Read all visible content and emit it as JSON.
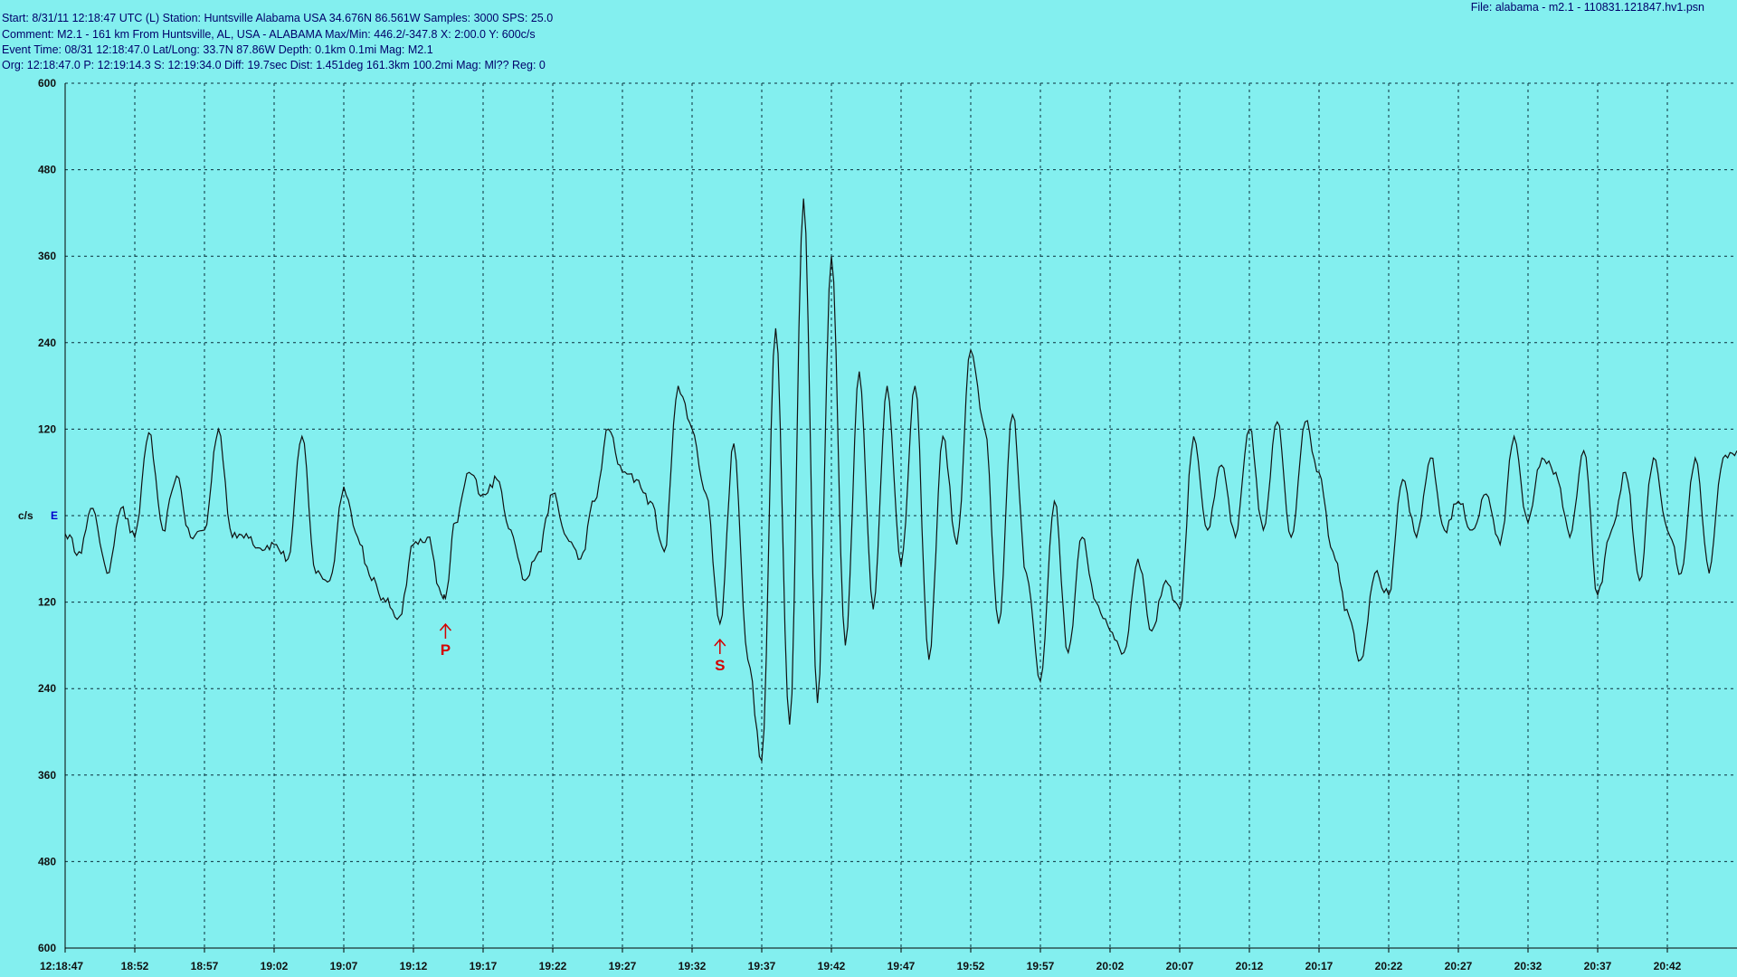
{
  "header": {
    "line1": "Start: 8/31/11 12:18:47 UTC (L) Station: Huntsville Alabama USA 34.676N 86.561W Samples: 3000  SPS: 25.0",
    "line2": "Comment: M2.1 - 161 km From Huntsville, AL, USA - ALABAMA  Max/Min: 446.2/-347.8 X: 2:00.0 Y: 600c/s",
    "line3": "Event Time: 08/31 12:18:47.0 Lat/Long: 33.7N 87.86W Depth: 0.1km 0.1mi Mag: M2.1",
    "line4": "Org: 12:18:47.0 P: 12:19:14.3 S: 12:19:34.0 Diff: 19.7sec Dist: 1.451deg 161.3km 100.2mi  Mag: Ml?? Reg: 0",
    "file": "File: alabama - m2.1 - 110831.121847.hv1.psn"
  },
  "chart_data": {
    "type": "line",
    "title": "",
    "xlabel": "",
    "ylabel": "c/s",
    "channel_label": "E",
    "xlim": [
      0,
      120
    ],
    "ylim": [
      -600,
      600
    ],
    "grid": true,
    "y_ticks": [
      {
        "value": 600,
        "label": "600"
      },
      {
        "value": 480,
        "label": "480"
      },
      {
        "value": 360,
        "label": "360"
      },
      {
        "value": 240,
        "label": "240"
      },
      {
        "value": 120,
        "label": "120"
      },
      {
        "value": -120,
        "label": "120"
      },
      {
        "value": -240,
        "label": "240"
      },
      {
        "value": -360,
        "label": "360"
      },
      {
        "value": -480,
        "label": "480"
      },
      {
        "value": -600,
        "label": "600"
      }
    ],
    "x_ticks": [
      {
        "t": 0,
        "label": "12:18:47"
      },
      {
        "t": 5,
        "label": "18:52"
      },
      {
        "t": 10,
        "label": "18:57"
      },
      {
        "t": 15,
        "label": "19:02"
      },
      {
        "t": 20,
        "label": "19:07"
      },
      {
        "t": 25,
        "label": "19:12"
      },
      {
        "t": 30,
        "label": "19:17"
      },
      {
        "t": 35,
        "label": "19:22"
      },
      {
        "t": 40,
        "label": "19:27"
      },
      {
        "t": 45,
        "label": "19:32"
      },
      {
        "t": 50,
        "label": "19:37"
      },
      {
        "t": 55,
        "label": "19:42"
      },
      {
        "t": 60,
        "label": "19:47"
      },
      {
        "t": 65,
        "label": "19:52"
      },
      {
        "t": 70,
        "label": "19:57"
      },
      {
        "t": 75,
        "label": "20:02"
      },
      {
        "t": 80,
        "label": "20:07"
      },
      {
        "t": 85,
        "label": "20:12"
      },
      {
        "t": 90,
        "label": "20:17"
      },
      {
        "t": 95,
        "label": "20:22"
      },
      {
        "t": 100,
        "label": "20:27"
      },
      {
        "t": 105,
        "label": "20:32"
      },
      {
        "t": 110,
        "label": "20:37"
      },
      {
        "t": 115,
        "label": "20:42"
      }
    ],
    "markers": [
      {
        "label": "P",
        "t": 27.3
      },
      {
        "label": "S",
        "t": 47.0
      }
    ],
    "series": [
      {
        "points": [
          [
            0,
            -25
          ],
          [
            1,
            -50
          ],
          [
            2,
            10
          ],
          [
            3,
            -80
          ],
          [
            4,
            10
          ],
          [
            5,
            -30
          ],
          [
            6,
            115
          ],
          [
            7,
            -20
          ],
          [
            8,
            55
          ],
          [
            9,
            -30
          ],
          [
            10,
            -20
          ],
          [
            11,
            120
          ],
          [
            12,
            -30
          ],
          [
            13,
            -25
          ],
          [
            14,
            -45
          ],
          [
            15,
            -40
          ],
          [
            16,
            -60
          ],
          [
            17,
            110
          ],
          [
            18,
            -80
          ],
          [
            19,
            -90
          ],
          [
            20,
            40
          ],
          [
            21,
            -30
          ],
          [
            22,
            -90
          ],
          [
            23,
            -120
          ],
          [
            24,
            -140
          ],
          [
            25,
            -40
          ],
          [
            26,
            -30
          ],
          [
            27,
            -110
          ],
          [
            27.3,
            -115
          ],
          [
            28,
            -10
          ],
          [
            29,
            60
          ],
          [
            30,
            30
          ],
          [
            31,
            50
          ],
          [
            32,
            -20
          ],
          [
            33,
            -90
          ],
          [
            34,
            -50
          ],
          [
            35,
            30
          ],
          [
            36,
            -30
          ],
          [
            37,
            -60
          ],
          [
            38,
            20
          ],
          [
            39,
            120
          ],
          [
            40,
            60
          ],
          [
            41,
            50
          ],
          [
            42,
            20
          ],
          [
            43,
            -50
          ],
          [
            44,
            180
          ],
          [
            45,
            120
          ],
          [
            46,
            30
          ],
          [
            47,
            -150
          ],
          [
            48,
            100
          ],
          [
            49,
            -200
          ],
          [
            50,
            -340
          ],
          [
            51,
            260
          ],
          [
            52,
            -290
          ],
          [
            53,
            440
          ],
          [
            54,
            -260
          ],
          [
            55,
            360
          ],
          [
            56,
            -180
          ],
          [
            57,
            200
          ],
          [
            58,
            -130
          ],
          [
            59,
            180
          ],
          [
            60,
            -70
          ],
          [
            61,
            180
          ],
          [
            62,
            -200
          ],
          [
            63,
            110
          ],
          [
            64,
            -40
          ],
          [
            65,
            230
          ],
          [
            66,
            120
          ],
          [
            67,
            -150
          ],
          [
            68,
            140
          ],
          [
            69,
            -80
          ],
          [
            70,
            -230
          ],
          [
            71,
            20
          ],
          [
            72,
            -190
          ],
          [
            73,
            -30
          ],
          [
            74,
            -120
          ],
          [
            75,
            -160
          ],
          [
            76,
            -190
          ],
          [
            77,
            -60
          ],
          [
            78,
            -160
          ],
          [
            79,
            -90
          ],
          [
            80,
            -130
          ],
          [
            81,
            110
          ],
          [
            82,
            -20
          ],
          [
            83,
            70
          ],
          [
            84,
            -30
          ],
          [
            85,
            120
          ],
          [
            86,
            -20
          ],
          [
            87,
            130
          ],
          [
            88,
            -30
          ],
          [
            89,
            130
          ],
          [
            90,
            60
          ],
          [
            91,
            -50
          ],
          [
            92,
            -130
          ],
          [
            93,
            -200
          ],
          [
            94,
            -80
          ],
          [
            95,
            -110
          ],
          [
            96,
            50
          ],
          [
            97,
            -30
          ],
          [
            98,
            80
          ],
          [
            99,
            -20
          ],
          [
            100,
            20
          ],
          [
            101,
            -20
          ],
          [
            102,
            30
          ],
          [
            103,
            -40
          ],
          [
            104,
            110
          ],
          [
            105,
            -10
          ],
          [
            106,
            80
          ],
          [
            107,
            60
          ],
          [
            108,
            -30
          ],
          [
            109,
            90
          ],
          [
            110,
            -110
          ],
          [
            111,
            -20
          ],
          [
            112,
            60
          ],
          [
            113,
            -90
          ],
          [
            114,
            80
          ],
          [
            115,
            -20
          ],
          [
            116,
            -80
          ],
          [
            117,
            80
          ],
          [
            118,
            -80
          ],
          [
            119,
            80
          ],
          [
            120,
            90
          ]
        ]
      }
    ]
  }
}
